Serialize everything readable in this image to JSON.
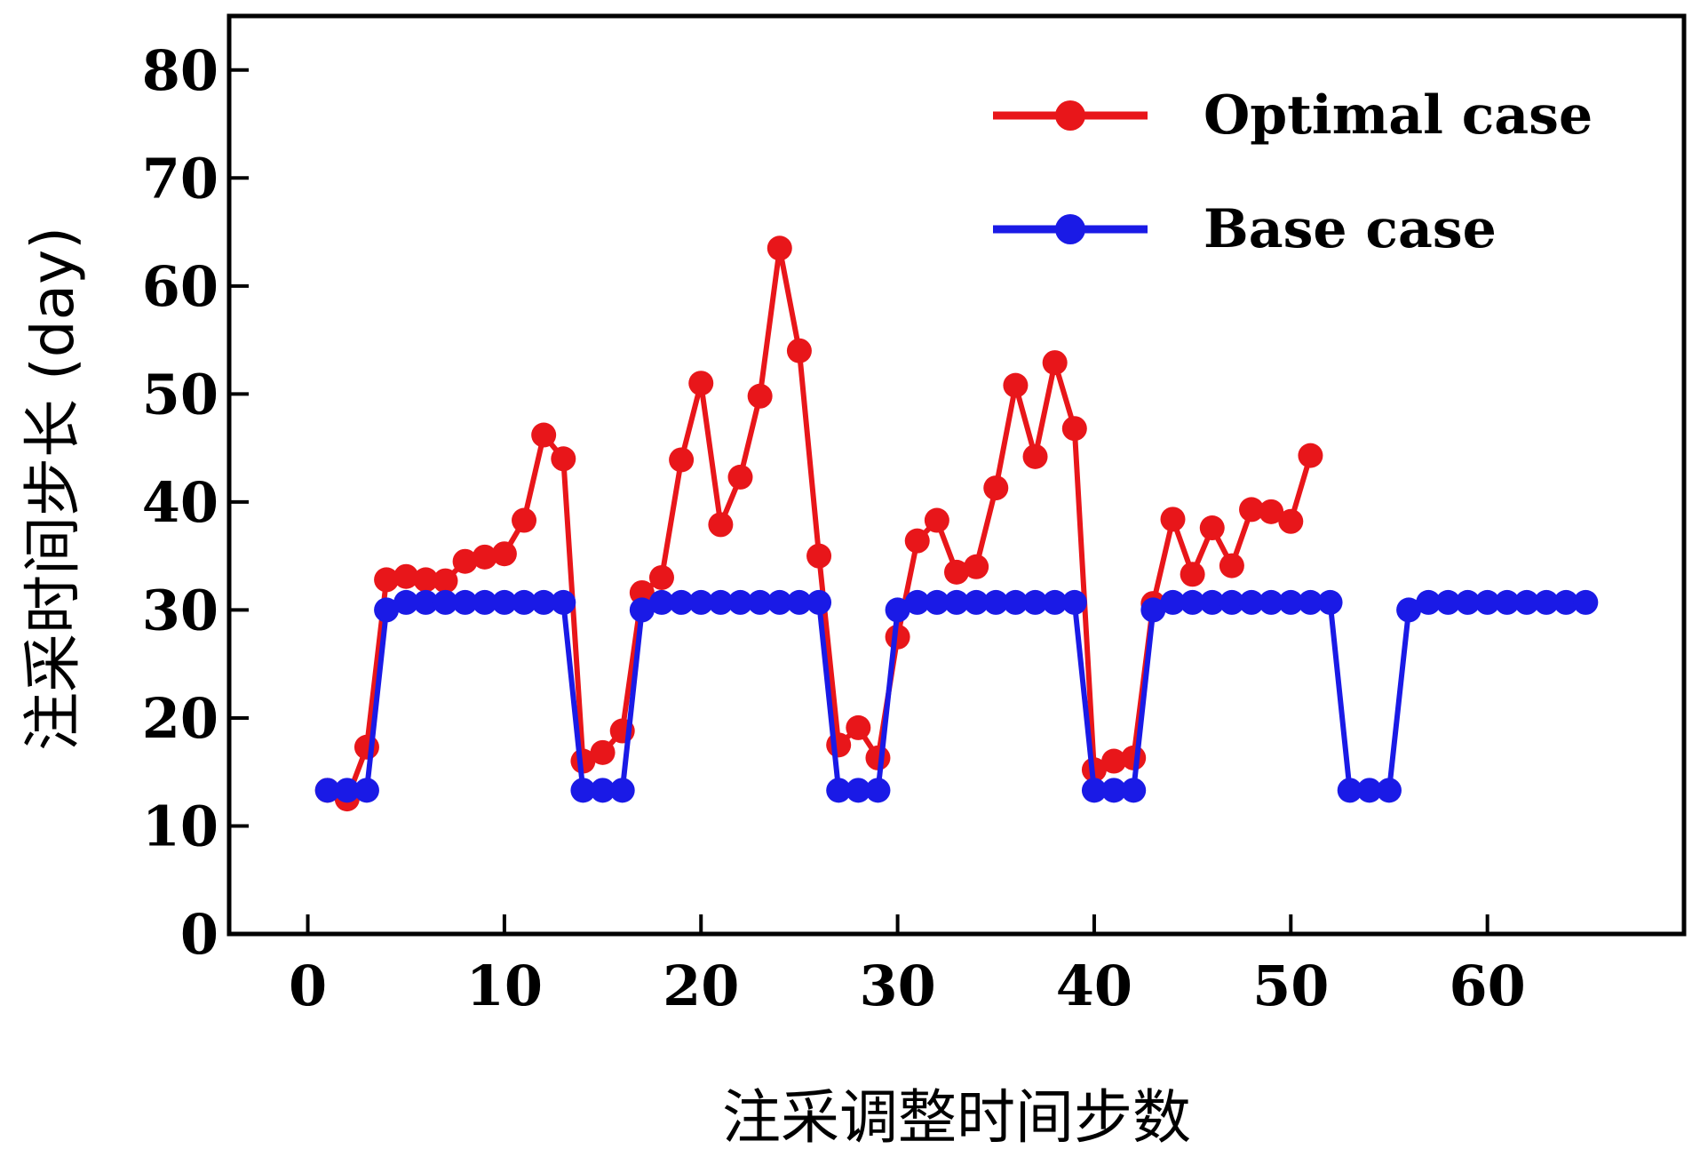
{
  "chart_data": {
    "type": "line",
    "title": "",
    "xlabel": "注采调整时间步数",
    "ylabel": "注采时间步长 (day)",
    "xlim": [
      -4,
      70
    ],
    "ylim": [
      0,
      85
    ],
    "xticks": [
      0,
      10,
      20,
      30,
      40,
      50,
      60
    ],
    "yticks": [
      0,
      10,
      20,
      30,
      40,
      50,
      60,
      70,
      80
    ],
    "grid": false,
    "legend_position": "top-right",
    "series": [
      {
        "name": "Optimal case",
        "color": "#e8161a",
        "x": [
          1,
          2,
          3,
          4,
          5,
          6,
          7,
          8,
          9,
          10,
          11,
          12,
          13,
          14,
          15,
          16,
          17,
          18,
          19,
          20,
          21,
          22,
          23,
          24,
          25,
          26,
          27,
          28,
          29,
          30,
          31,
          32,
          33,
          34,
          35,
          36,
          37,
          38,
          39,
          40,
          41,
          42,
          43,
          44,
          45,
          46,
          47,
          48,
          49,
          50,
          51
        ],
        "y": [
          13.3,
          12.5,
          17.3,
          32.8,
          33.1,
          32.8,
          32.7,
          34.5,
          34.9,
          35.2,
          38.3,
          46.2,
          44.0,
          16.0,
          16.8,
          18.8,
          31.6,
          33.0,
          43.9,
          51.0,
          37.9,
          42.3,
          49.8,
          63.5,
          54.0,
          35.0,
          17.5,
          19.1,
          16.3,
          27.5,
          36.4,
          38.3,
          33.5,
          34.0,
          41.3,
          50.8,
          44.2,
          52.9,
          46.8,
          15.2,
          16.0,
          16.3,
          30.6,
          38.4,
          33.3,
          37.6,
          34.1,
          39.3,
          39.1,
          38.2,
          44.3
        ]
      },
      {
        "name": "Base case",
        "color": "#1a1ae6",
        "x": [
          1,
          2,
          3,
          4,
          5,
          6,
          7,
          8,
          9,
          10,
          11,
          12,
          13,
          14,
          15,
          16,
          17,
          18,
          19,
          20,
          21,
          22,
          23,
          24,
          25,
          26,
          27,
          28,
          29,
          30,
          31,
          32,
          33,
          34,
          35,
          36,
          37,
          38,
          39,
          40,
          41,
          42,
          43,
          44,
          45,
          46,
          47,
          48,
          49,
          50,
          51,
          52,
          53,
          54,
          55,
          56,
          57,
          58,
          59,
          60,
          61,
          62,
          63,
          64,
          65
        ],
        "y": [
          13.3,
          13.3,
          13.3,
          30.0,
          30.7,
          30.7,
          30.7,
          30.7,
          30.7,
          30.7,
          30.7,
          30.7,
          30.7,
          13.3,
          13.3,
          13.3,
          30.0,
          30.7,
          30.7,
          30.7,
          30.7,
          30.7,
          30.7,
          30.7,
          30.7,
          30.7,
          13.3,
          13.3,
          13.3,
          30.0,
          30.7,
          30.7,
          30.7,
          30.7,
          30.7,
          30.7,
          30.7,
          30.7,
          30.7,
          13.3,
          13.3,
          13.3,
          30.0,
          30.7,
          30.7,
          30.7,
          30.7,
          30.7,
          30.7,
          30.7,
          30.7,
          30.7,
          13.3,
          13.3,
          13.3,
          30.0,
          30.7,
          30.7,
          30.7,
          30.7,
          30.7,
          30.7,
          30.7,
          30.7,
          30.7
        ]
      }
    ]
  }
}
